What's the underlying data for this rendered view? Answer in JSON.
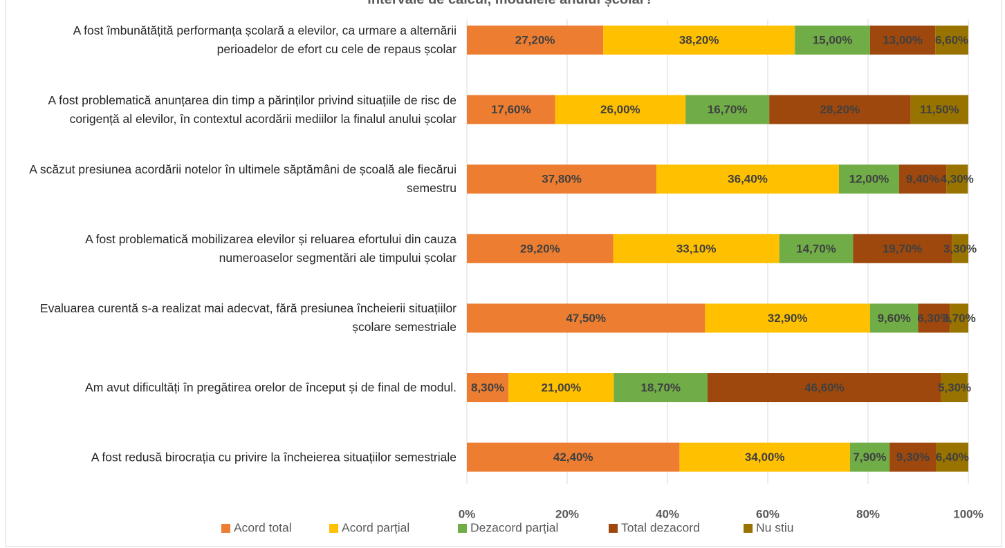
{
  "chart_data": {
    "type": "stacked-barh",
    "title": "intervale de calcul, modulele anului școlar?",
    "categories": [
      "A fost îmbunătățită performanța școlară a elevilor, ca urmare a alternării perioadelor de efort cu cele de repaus școlar",
      "A fost problematică anunțarea din timp a părinților privind situațiile de risc de corigență al elevilor, în contextul acordării mediilor la finalul anului școlar",
      "A scăzut presiunea acordării notelor în ultimele săptămâni de școală ale fiecărui semestru",
      "A fost problematică mobilizarea elevilor și reluarea efortului din cauza numeroaselor segmentări ale timpului școlar",
      "Evaluarea curentă s-a realizat mai adecvat, fără presiunea încheierii situațiilor școlare semestriale",
      "Am avut dificultăți în pregătirea orelor de început și de final de modul.",
      "A fost redusă birocrația cu privire la încheierea situațiilor semestriale"
    ],
    "series": [
      {
        "name": "Acord total",
        "color": "#ED7D31",
        "values": [
          27.2,
          17.6,
          37.8,
          29.2,
          47.5,
          8.3,
          42.4
        ],
        "value_labels": [
          "27,20%",
          "17,60%",
          "37,80%",
          "29,20%",
          "47,50%",
          "8,30%",
          "42,40%"
        ]
      },
      {
        "name": "Acord parțial",
        "color": "#FFC000",
        "values": [
          38.2,
          26.0,
          36.4,
          33.1,
          32.9,
          21.0,
          34.0
        ],
        "value_labels": [
          "38,20%",
          "26,00%",
          "36,40%",
          "33,10%",
          "32,90%",
          "21,00%",
          "34,00%"
        ]
      },
      {
        "name": "Dezacord parțial",
        "color": "#70AD47",
        "values": [
          15.0,
          16.7,
          12.0,
          14.7,
          9.6,
          18.7,
          7.9
        ],
        "value_labels": [
          "15,00%",
          "16,70%",
          "12,00%",
          "14,70%",
          "9,60%",
          "18,70%",
          "7,90%"
        ]
      },
      {
        "name": "Total dezacord",
        "color": "#9E480E",
        "values": [
          13.0,
          28.2,
          9.4,
          19.7,
          6.3,
          46.6,
          9.3
        ],
        "value_labels": [
          "13,00%",
          "28,20%",
          "9,40%",
          "19,70%",
          "6,30%",
          "46,60%",
          "9,30%"
        ]
      },
      {
        "name": "Nu stiu",
        "color": "#997300",
        "values": [
          6.6,
          11.5,
          4.3,
          3.3,
          3.7,
          5.3,
          6.4
        ],
        "value_labels": [
          "6,60%",
          "11,50%",
          "4,30%",
          "3,30%",
          "3,70%",
          "5,30%",
          "6,40%"
        ]
      }
    ],
    "xlim": [
      0,
      100
    ],
    "xticks": [
      {
        "value": 0,
        "label": "0%"
      },
      {
        "value": 20,
        "label": "20%"
      },
      {
        "value": 40,
        "label": "40%"
      },
      {
        "value": 60,
        "label": "60%"
      },
      {
        "value": 80,
        "label": "80%"
      },
      {
        "value": 100,
        "label": "100%"
      }
    ],
    "grid": true,
    "legend": "bottom"
  }
}
